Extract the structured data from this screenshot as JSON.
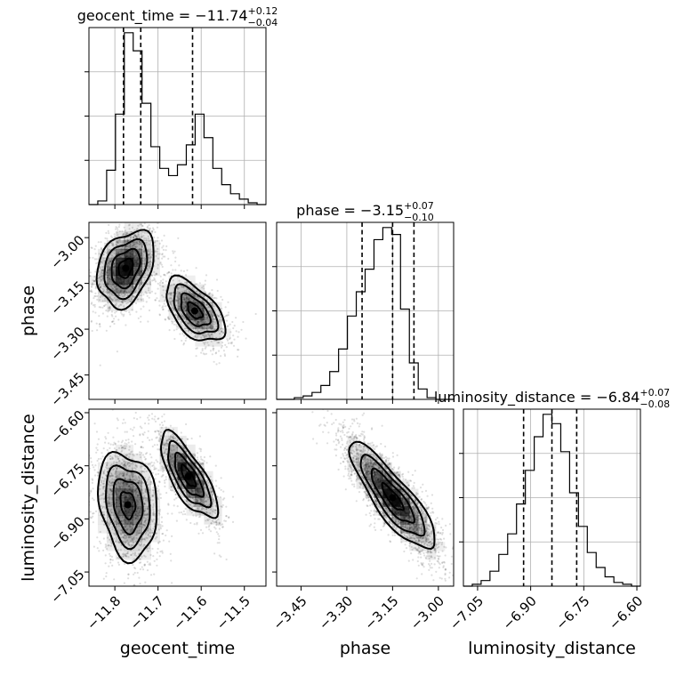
{
  "chart_data": {
    "type": "corner",
    "parameters": [
      "geocent_time",
      "phase",
      "luminosity_distance"
    ],
    "titles": [
      {
        "param": "geocent_time",
        "prefix": "geocent_time = ",
        "median": "−11.74",
        "plus": "+0.12",
        "minus": "−0.04"
      },
      {
        "param": "phase",
        "prefix": "phase = ",
        "median": "−3.15",
        "plus": "+0.07",
        "minus": "−0.10"
      },
      {
        "param": "luminosity_distance",
        "prefix": "luminosity_distance = ",
        "median": "−6.84",
        "plus": "+0.07",
        "minus": "−0.08"
      }
    ],
    "axis_labels": {
      "x": [
        "geocent_time",
        "phase",
        "luminosity_distance"
      ],
      "y": [
        "phase",
        "luminosity_distance"
      ]
    },
    "ranges": {
      "geocent_time": [
        -11.86,
        -11.45
      ],
      "phase": [
        -3.53,
        -2.95
      ],
      "luminosity_distance": [
        -7.09,
        -6.59
      ]
    },
    "ticks": {
      "geocent_time": [
        -11.8,
        -11.7,
        -11.6,
        -11.5
      ],
      "phase": [
        -3.45,
        -3.3,
        -3.15,
        -3.0
      ],
      "luminosity_distance": [
        -7.05,
        -6.9,
        -6.75,
        -6.6
      ]
    },
    "tick_labels": {
      "geocent_time": [
        "−11.8",
        "−11.7",
        "−11.6",
        "−11.5"
      ],
      "phase": [
        "−3.45",
        "−3.30",
        "−3.15",
        "−3.00"
      ],
      "luminosity_distance": [
        "−7.05",
        "−6.90",
        "−6.75",
        "−6.60"
      ]
    },
    "quantiles": {
      "geocent_time": [
        -11.78,
        -11.74,
        -11.62
      ],
      "phase": [
        -3.25,
        -3.15,
        -3.08
      ],
      "luminosity_distance": [
        -6.92,
        -6.84,
        -6.77
      ]
    },
    "histograms": {
      "geocent_time": {
        "x0": -11.86,
        "x1": -11.45,
        "counts": [
          0,
          0.02,
          0.19,
          0.5,
          0.95,
          0.85,
          0.56,
          0.32,
          0.2,
          0.16,
          0.22,
          0.33,
          0.5,
          0.37,
          0.2,
          0.11,
          0.06,
          0.03,
          0.01,
          0
        ]
      },
      "phase": {
        "x0": -3.53,
        "x1": -2.95,
        "counts": [
          0,
          0,
          0.01,
          0.02,
          0.04,
          0.08,
          0.16,
          0.29,
          0.48,
          0.62,
          0.75,
          0.92,
          0.99,
          0.95,
          0.52,
          0.21,
          0.06,
          0.01,
          0,
          0
        ]
      },
      "luminosity_distance": {
        "x0": -7.09,
        "x1": -6.59,
        "counts": [
          0,
          0.01,
          0.03,
          0.08,
          0.17,
          0.28,
          0.44,
          0.62,
          0.8,
          0.92,
          0.87,
          0.72,
          0.5,
          0.32,
          0.18,
          0.1,
          0.05,
          0.02,
          0.01,
          0
        ]
      }
    },
    "grid": true,
    "scatter_modes": {
      "geocent_time|phase": [
        {
          "mx": -11.775,
          "my": -3.1,
          "sx": 0.033,
          "sy": 0.062,
          "rho": 0.3,
          "w": 0.62
        },
        {
          "mx": -11.615,
          "my": -3.24,
          "sx": 0.034,
          "sy": 0.052,
          "rho": -0.55,
          "w": 0.38
        }
      ],
      "geocent_time|luminosity_distance": [
        {
          "mx": -11.77,
          "my": -6.86,
          "sx": 0.034,
          "sy": 0.075,
          "rho": -0.2,
          "w": 0.6
        },
        {
          "mx": -11.63,
          "my": -6.78,
          "sx": 0.033,
          "sy": 0.06,
          "rho": -0.75,
          "w": 0.4
        }
      ],
      "phase|luminosity_distance": [
        {
          "mx": -3.15,
          "my": -6.84,
          "sx": 0.07,
          "sy": 0.075,
          "rho": -0.85,
          "w": 1.0
        }
      ]
    }
  }
}
